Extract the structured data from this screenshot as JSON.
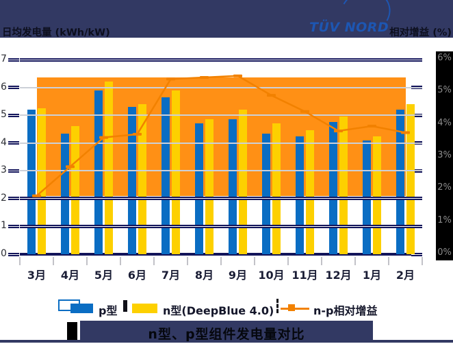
{
  "header": {
    "left_axis_title": "日均发电量 (kWh/kW)",
    "logo_text": "TÜV NORD",
    "right_axis_title": "相对增益 (%)"
  },
  "legend": {
    "p_label": "p型",
    "n_label": "n型(DeepBlue 4.0)",
    "gain_label": "n-p相对增益"
  },
  "footer": {
    "title": "n型、p型组件发电量对比"
  },
  "colors": {
    "header_navy": "#323963",
    "axis_navy": "#12145a",
    "p_bar_blue": "#0a6dc3",
    "n_bar_yellow": "#fdd000",
    "gain_area_orange": "#ff9015",
    "gain_line_orange": "#f28100",
    "gridline_gray": "#ccd0d8",
    "right_label_gray": "#8d8d8d",
    "right_label_bg": "#000000",
    "logo_blue": "#1d56b2"
  },
  "chart_data": {
    "type": "bar",
    "subtype": "grouped bars + line on secondary axis",
    "title": "n型、p型组件发电量对比",
    "categories": [
      "3月",
      "4月",
      "5月",
      "6月",
      "7月",
      "8月",
      "9月",
      "10月",
      "11月",
      "12月",
      "1月",
      "2月"
    ],
    "series": [
      {
        "name": "p型",
        "type": "bar",
        "axis": "left",
        "values": [
          5.2,
          4.35,
          5.9,
          5.3,
          5.65,
          4.7,
          4.85,
          4.35,
          4.25,
          4.75,
          4.1,
          5.2
        ]
      },
      {
        "name": "n型(DeepBlue 4.0)",
        "type": "bar",
        "axis": "left",
        "values": [
          5.25,
          4.6,
          6.2,
          5.4,
          5.9,
          4.85,
          5.2,
          4.7,
          4.45,
          4.95,
          4.25,
          5.4
        ]
      },
      {
        "name": "n-p相对增益",
        "type": "line",
        "axis": "right",
        "values_pct": [
          1.8,
          2.7,
          3.6,
          3.7,
          5.4,
          5.45,
          5.5,
          4.9,
          4.4,
          3.8,
          3.95,
          3.75
        ]
      }
    ],
    "left_axis": {
      "title": "日均发电量 (kWh/kW)",
      "min": 0,
      "max": 7,
      "tick_labels": [
        "0",
        "1",
        "2",
        "3",
        "4",
        "5",
        "6",
        "7"
      ]
    },
    "right_axis": {
      "title": "相对增益 (%)",
      "min": 0,
      "max": 6,
      "tick_labels": [
        "0%",
        "1%",
        "2%",
        "3%",
        "4%",
        "5%",
        "6%"
      ]
    },
    "highlight_band_pct": {
      "from": 1.8,
      "to": 5.46
    },
    "grid": "on, light gray at left-axis 3-6, navy double lines at 1, 2 and 7",
    "legend_position": "bottom"
  }
}
